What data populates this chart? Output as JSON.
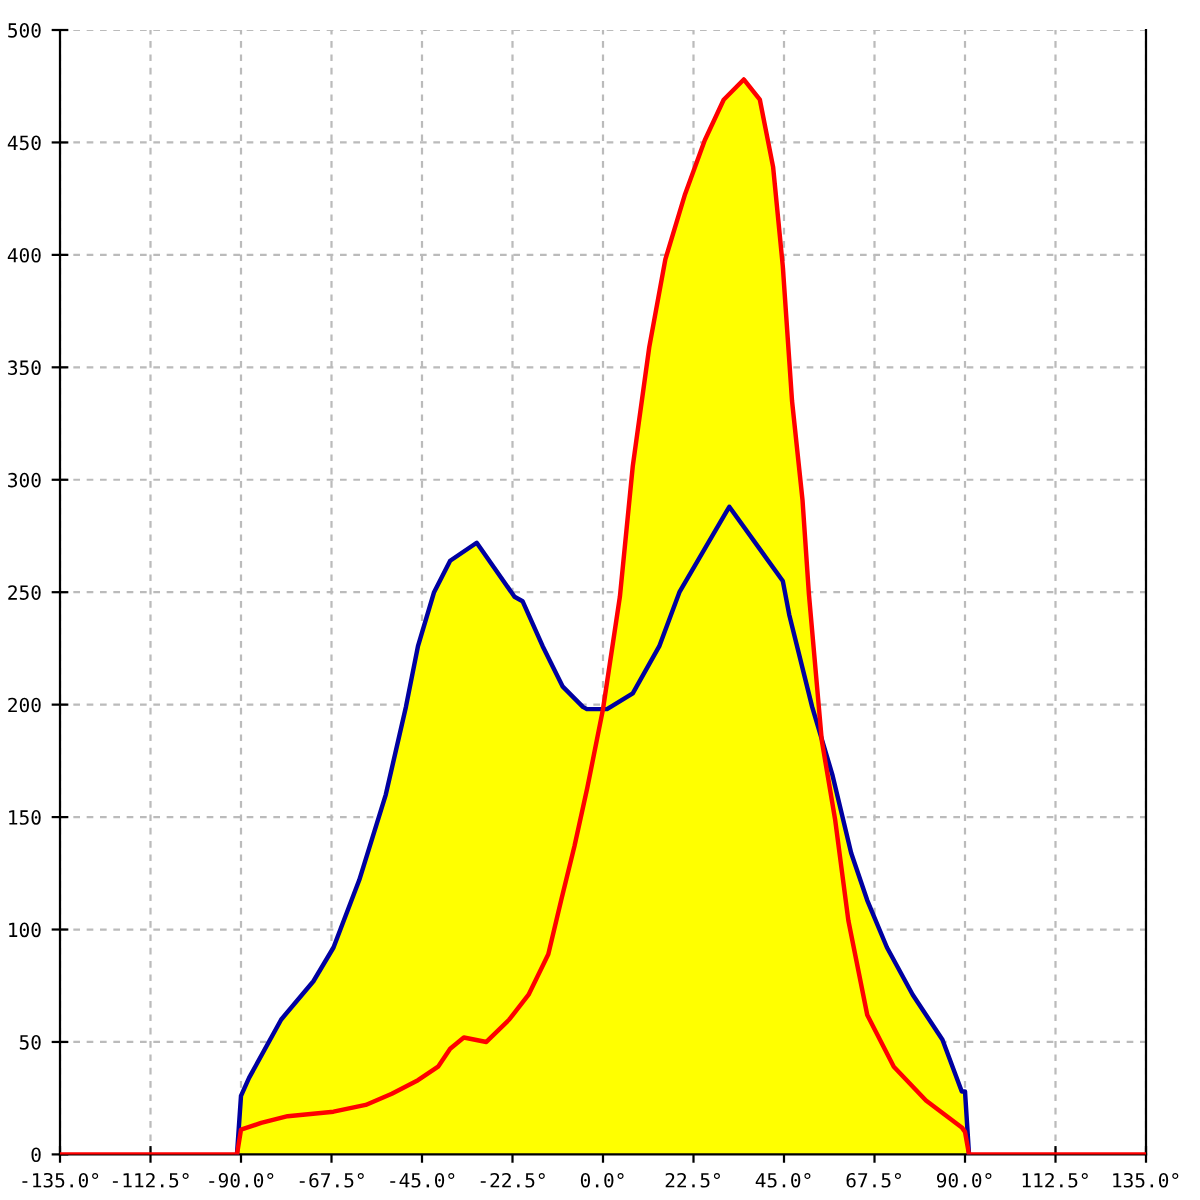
{
  "chart_data": {
    "type": "area",
    "xlim": [
      -135,
      135
    ],
    "ylim": [
      0,
      500
    ],
    "xticks": [
      {
        "value": -135,
        "label": "-135.0°"
      },
      {
        "value": -112.5,
        "label": "-112.5°"
      },
      {
        "value": -90,
        "label": "-90.0°"
      },
      {
        "value": -67.5,
        "label": "-67.5°"
      },
      {
        "value": -45,
        "label": "-45.0°"
      },
      {
        "value": -22.5,
        "label": "-22.5°"
      },
      {
        "value": 0,
        "label": "0.0°"
      },
      {
        "value": 22.5,
        "label": "22.5°"
      },
      {
        "value": 45,
        "label": "45.0°"
      },
      {
        "value": 67.5,
        "label": "67.5°"
      },
      {
        "value": 90,
        "label": "90.0°"
      },
      {
        "value": 112.5,
        "label": "112.5°"
      },
      {
        "value": 135,
        "label": "135.0°"
      }
    ],
    "yticks": [
      0,
      50,
      100,
      150,
      200,
      250,
      300,
      350,
      400,
      450,
      500
    ],
    "grid": true,
    "line_style": "solid",
    "series": [
      {
        "color": "#ffff00",
        "x": [
          -91,
          -90,
          -88,
          -80,
          -72,
          -67,
          -60.6,
          -54,
          -49,
          -46,
          -42,
          -38,
          -31.4,
          -22,
          -20,
          -15,
          -10,
          -5,
          -4,
          0,
          4.2,
          7.4,
          11.5,
          15.5,
          20.4,
          25.3,
          30,
          35,
          39,
          42.3,
          44.7,
          47,
          49.6,
          51.2,
          54.4,
          57,
          61.7,
          65.7,
          70.6,
          77,
          84.4,
          89.2,
          90,
          91
        ],
        "values": [
          0,
          26,
          34,
          60,
          77,
          92,
          122,
          160,
          199,
          226,
          250,
          264,
          272,
          248,
          246,
          226,
          208,
          199,
          198,
          198,
          248,
          306,
          359,
          398,
          427,
          451,
          469,
          478,
          469,
          439,
          395,
          335,
          291,
          249,
          184,
          169,
          134,
          113,
          92,
          71,
          51,
          28,
          28,
          0
        ]
      },
      {
        "color": "#0000a0",
        "type": "line",
        "x": [
          -91,
          -90,
          -88,
          -80,
          -72,
          -67,
          -60.6,
          -54,
          -49,
          -46,
          -42,
          -38,
          -31.4,
          -22,
          -20,
          -15,
          -10,
          -5,
          -4,
          1,
          7.4,
          14,
          19,
          31.4,
          44.7,
          46.3,
          52,
          57,
          61.7,
          65.7,
          70.6,
          77,
          84.4,
          89.2,
          90,
          91
        ],
        "values": [
          0,
          26,
          34,
          60,
          77,
          92,
          122,
          160,
          199,
          226,
          250,
          264,
          272,
          248,
          246,
          226,
          208,
          199,
          198,
          198,
          205,
          226,
          250,
          288,
          255,
          240,
          199,
          169,
          134,
          113,
          92,
          71,
          51,
          28,
          28,
          0
        ]
      },
      {
        "color": "#ff0000",
        "type": "line",
        "x": [
          -135,
          -91,
          -90,
          -85,
          -78.4,
          -67,
          -59,
          -52.5,
          -46,
          -41,
          -38,
          -34.6,
          -29,
          -23.3,
          -18.5,
          -13.6,
          -10.4,
          -7.1,
          -3.9,
          0,
          4.2,
          7.4,
          11.5,
          15.5,
          20.4,
          25.3,
          30,
          35,
          39,
          42.3,
          44.7,
          47,
          49.6,
          51.2,
          54.4,
          57.7,
          61,
          65.7,
          72.3,
          80.3,
          89.2,
          90,
          91,
          135
        ],
        "values": [
          0,
          0,
          11,
          14,
          17,
          19,
          22,
          27,
          33,
          39,
          47,
          52,
          50,
          60,
          71,
          89,
          113,
          137,
          163,
          198,
          248,
          306,
          359,
          398,
          427,
          451,
          469,
          478,
          469,
          439,
          395,
          335,
          291,
          249,
          184,
          149,
          104,
          62,
          39,
          24,
          12,
          10,
          0,
          0
        ]
      }
    ]
  }
}
